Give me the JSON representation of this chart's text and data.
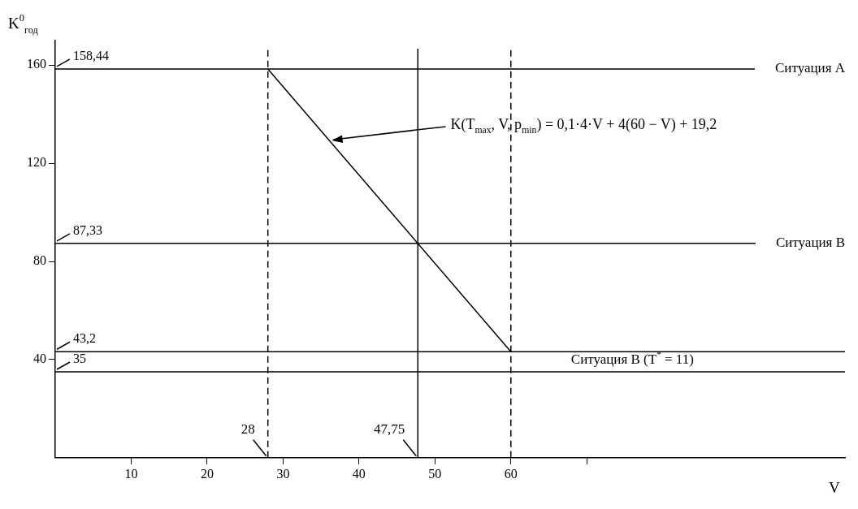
{
  "chart_data": {
    "type": "line",
    "xlabel": "V",
    "ylabel": "K$^{0}$$_{год}$",
    "x": [
      28,
      60
    ],
    "series": [
      {
        "type": "line",
        "color": "#000000",
        "values": [
          158.44,
          43.2
        ]
      }
    ],
    "xlim": [
      0,
      104
    ],
    "ylim": [
      0,
      170
    ],
    "xticks": [
      10,
      20,
      30,
      40,
      50,
      60,
      {
        "value": 70,
        "label": null
      }
    ],
    "yticks": [
      40,
      80,
      120,
      160
    ],
    "grid": false,
    "legend": false,
    "marker": "none",
    "line_style": "solid",
    "ref_lines": [
      {
        "axis": "y",
        "value": 158.44,
        "label": "Ситуация А",
        "color": "#000000",
        "line_style": "solid"
      },
      {
        "axis": "y",
        "value": 87.33,
        "label": "Ситуация В",
        "color": "#000000",
        "line_style": "solid"
      },
      {
        "axis": "y",
        "value": 43.2,
        "color": "#000000",
        "line_style": "solid"
      },
      {
        "axis": "y",
        "value": 35,
        "color": "#000000",
        "line_style": "solid"
      },
      {
        "axis": "x",
        "value": 28,
        "label": "28",
        "color": "#000000",
        "line_style": "dashed"
      },
      {
        "axis": "x",
        "value": 47.75,
        "label": "47,75",
        "color": "#000000",
        "line_style": "solid"
      },
      {
        "axis": "x",
        "value": 60,
        "color": "#000000",
        "line_style": "dashed"
      }
    ],
    "annotations": [
      {
        "text": "158,44",
        "y": 158.44
      },
      {
        "text": "87,33",
        "y": 87.33
      },
      {
        "text": "43,2",
        "y": 43.2
      },
      {
        "text": "35",
        "y": 35
      },
      {
        "text": "Ситуация В (T$^{*}$ = 11)",
        "x": 76,
        "y": 35
      },
      {
        "text": "K(T$_{max}$, V, p$_{min}$) = 0,1·4·V + 4(60 − V) + 19,2",
        "x": 36,
        "y": 129
      }
    ]
  }
}
